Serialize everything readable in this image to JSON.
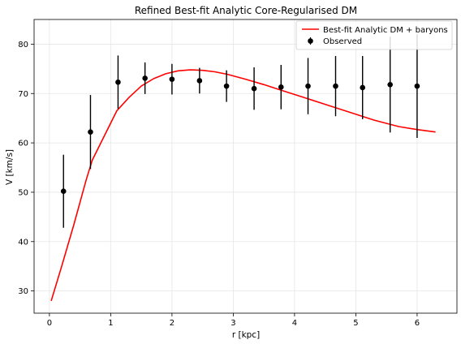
{
  "chart_data": {
    "type": "line",
    "title": "Refined Best-fit Analytic Core-Regularised DM",
    "xlabel": "r [kpc]",
    "ylabel": "V [km/s]",
    "xlim": [
      -0.25,
      6.65
    ],
    "ylim": [
      25.5,
      85
    ],
    "xticks": [
      0,
      1,
      2,
      3,
      4,
      5,
      6
    ],
    "yticks": [
      30,
      40,
      50,
      60,
      70,
      80
    ],
    "grid": true,
    "legend_position": "top-right",
    "series": [
      {
        "name": "Best-fit Analytic DM + baryons",
        "kind": "line",
        "color": "#ff0000",
        "x": [
          0.03,
          0.2,
          0.4,
          0.6,
          0.7,
          0.9,
          1.1,
          1.3,
          1.5,
          1.7,
          1.9,
          2.1,
          2.3,
          2.5,
          2.7,
          2.9,
          3.2,
          3.5,
          3.8,
          4.1,
          4.5,
          4.9,
          5.3,
          5.7,
          6.0,
          6.3
        ],
        "y": [
          28.0,
          35.0,
          43.5,
          52.5,
          56.5,
          61.5,
          66.5,
          69.2,
          71.5,
          73.0,
          74.0,
          74.6,
          74.8,
          74.7,
          74.4,
          73.9,
          72.9,
          71.8,
          70.6,
          69.4,
          67.8,
          66.2,
          64.6,
          63.3,
          62.7,
          62.2
        ]
      },
      {
        "name": "Observed",
        "kind": "errorbar",
        "color": "#000000",
        "x": [
          0.23,
          0.67,
          1.12,
          1.56,
          2.0,
          2.45,
          2.89,
          3.34,
          3.78,
          4.22,
          4.67,
          5.11,
          5.56,
          6.0
        ],
        "y": [
          50.2,
          62.2,
          72.3,
          73.1,
          72.9,
          72.6,
          71.5,
          71.0,
          71.3,
          71.5,
          71.5,
          71.2,
          71.8,
          71.5
        ],
        "err": [
          7.4,
          7.5,
          5.4,
          3.2,
          3.1,
          2.6,
          3.2,
          4.3,
          4.5,
          5.7,
          6.1,
          6.4,
          9.7,
          10.5
        ]
      }
    ]
  }
}
